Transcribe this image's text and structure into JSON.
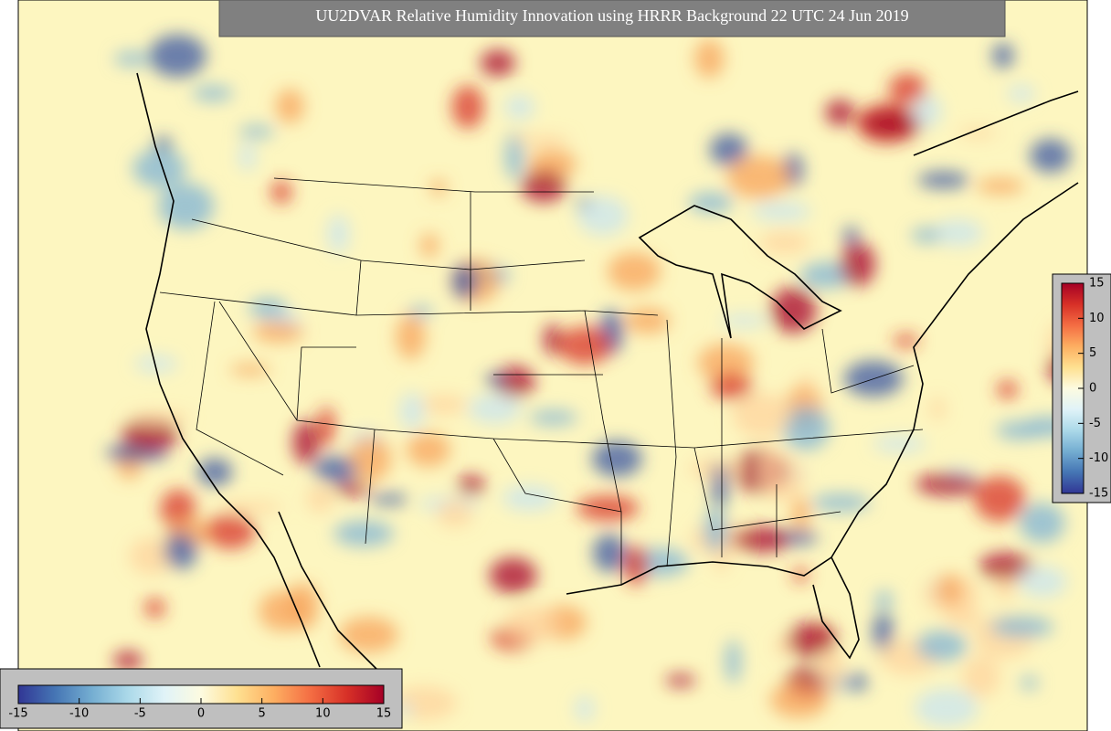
{
  "title": "UU2DVAR Relative Humidity Innovation using HRRR Background 22 UTC 24 Jun 2019",
  "colorbar": {
    "range": [
      -15,
      15
    ],
    "ticks": [
      -15,
      -10,
      -5,
      0,
      5,
      10,
      15
    ]
  }
}
